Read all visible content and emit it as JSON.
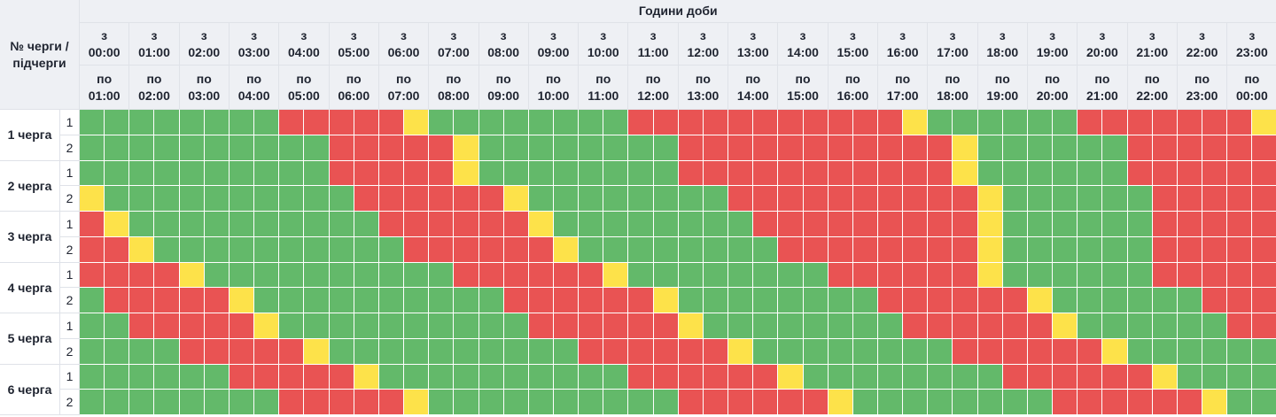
{
  "header": {
    "corner_line1": "№ черги /",
    "corner_line2": "підчерги",
    "title": "Години доби",
    "from_prefix": "з",
    "to_prefix": "по",
    "from_times": [
      "00:00",
      "01:00",
      "02:00",
      "03:00",
      "04:00",
      "05:00",
      "06:00",
      "07:00",
      "08:00",
      "09:00",
      "10:00",
      "11:00",
      "12:00",
      "13:00",
      "14:00",
      "15:00",
      "16:00",
      "17:00",
      "18:00",
      "19:00",
      "20:00",
      "21:00",
      "22:00",
      "23:00"
    ],
    "to_times": [
      "01:00",
      "02:00",
      "03:00",
      "04:00",
      "05:00",
      "06:00",
      "07:00",
      "08:00",
      "09:00",
      "10:00",
      "11:00",
      "12:00",
      "13:00",
      "14:00",
      "15:00",
      "16:00",
      "17:00",
      "18:00",
      "19:00",
      "20:00",
      "21:00",
      "22:00",
      "23:00",
      "00:00"
    ]
  },
  "colors": {
    "on": "#63b96a",
    "off": "#e95353",
    "maybe": "#fde24a"
  },
  "legend_codes": {
    "G": "on",
    "R": "off",
    "Y": "maybe"
  },
  "queues": [
    {
      "label": "1 черга",
      "subqueues": [
        {
          "label": "1",
          "slots": "GGGGGGGGRRRRRYGGGGGGGGRRRRRRRRRRRYGGGGGGRRRRRRRYGGGGGGRRRR"
        },
        {
          "label": "2",
          "slots": "GGGGGGGGGGRRRRRYGGGGGGGGRRRRRRRRRRRYGGGGGGRRRRRRRYGGGGGGRR"
        }
      ]
    },
    {
      "label": "2 черга",
      "subqueues": [
        {
          "label": "1",
          "slots": "GGGGGGGGGGRRRRRYGGGGGGGGRRRRRRRRRRRYGGGGGGRRRRRRRYGGGGGGRR"
        },
        {
          "label": "2",
          "slots": "YGGGGGGGGGGRRRRRRYGGGGGGGGRRRRRRRRRRYGGGGGGRRRRRRRYGGGGGGR"
        }
      ]
    },
    {
      "label": "3 черга",
      "subqueues": [
        {
          "label": "1",
          "slots": "RYGGGGGGGGGGRRRRRRYGGGGGGGGRRRRRRRRRYGGGGGGRRRRRRRYGGGGGGG"
        },
        {
          "label": "2",
          "slots": "RRYGGGGGGGGGGRRRRRRYGGGGGGGGRRRRRRRRYGGGGGGRRRRRRRYGGGGGGG"
        }
      ]
    },
    {
      "label": "4 черга",
      "subqueues": [
        {
          "label": "1",
          "slots": "RRRRYGGGGGGGGGGRRRRRRYGGGGGGGGRRRRRRYGGGGGGRRRRRRRYGGGGGGG"
        },
        {
          "label": "2",
          "slots": "GRRRRRYGGGGGGGGGGRRRRRRYGGGGGGGGRRRRRRYGGGGGGRRRRRRRYGGGGG"
        }
      ]
    },
    {
      "label": "5 черга",
      "subqueues": [
        {
          "label": "1",
          "slots": "GGRRRRRYGGGGGGGGGGRRRRRRYGGGGGGGGRRRRRRYGGGGGGRRRRRRRYGGGG"
        },
        {
          "label": "2",
          "slots": "GGGGRRRRRYGGGGGGGGGGRRRRRRYGGGGGGGGRRRRRRYGGGGGGRRRRRRRYGG"
        }
      ]
    },
    {
      "label": "6 черга",
      "subqueues": [
        {
          "label": "1",
          "slots": "GGGGGGRRRRRYGGGGGGGGGGRRRRRRYGGGGGGGGRRRRRRYGGGGGGRRRRRRRY"
        },
        {
          "label": "2",
          "slots": "GGGGGGGGRRRRRYGGGGGGGGGGRRRRRRYGGGGGGGGRRRRRRYGGGGGGRRRRRY"
        }
      ]
    }
  ]
}
